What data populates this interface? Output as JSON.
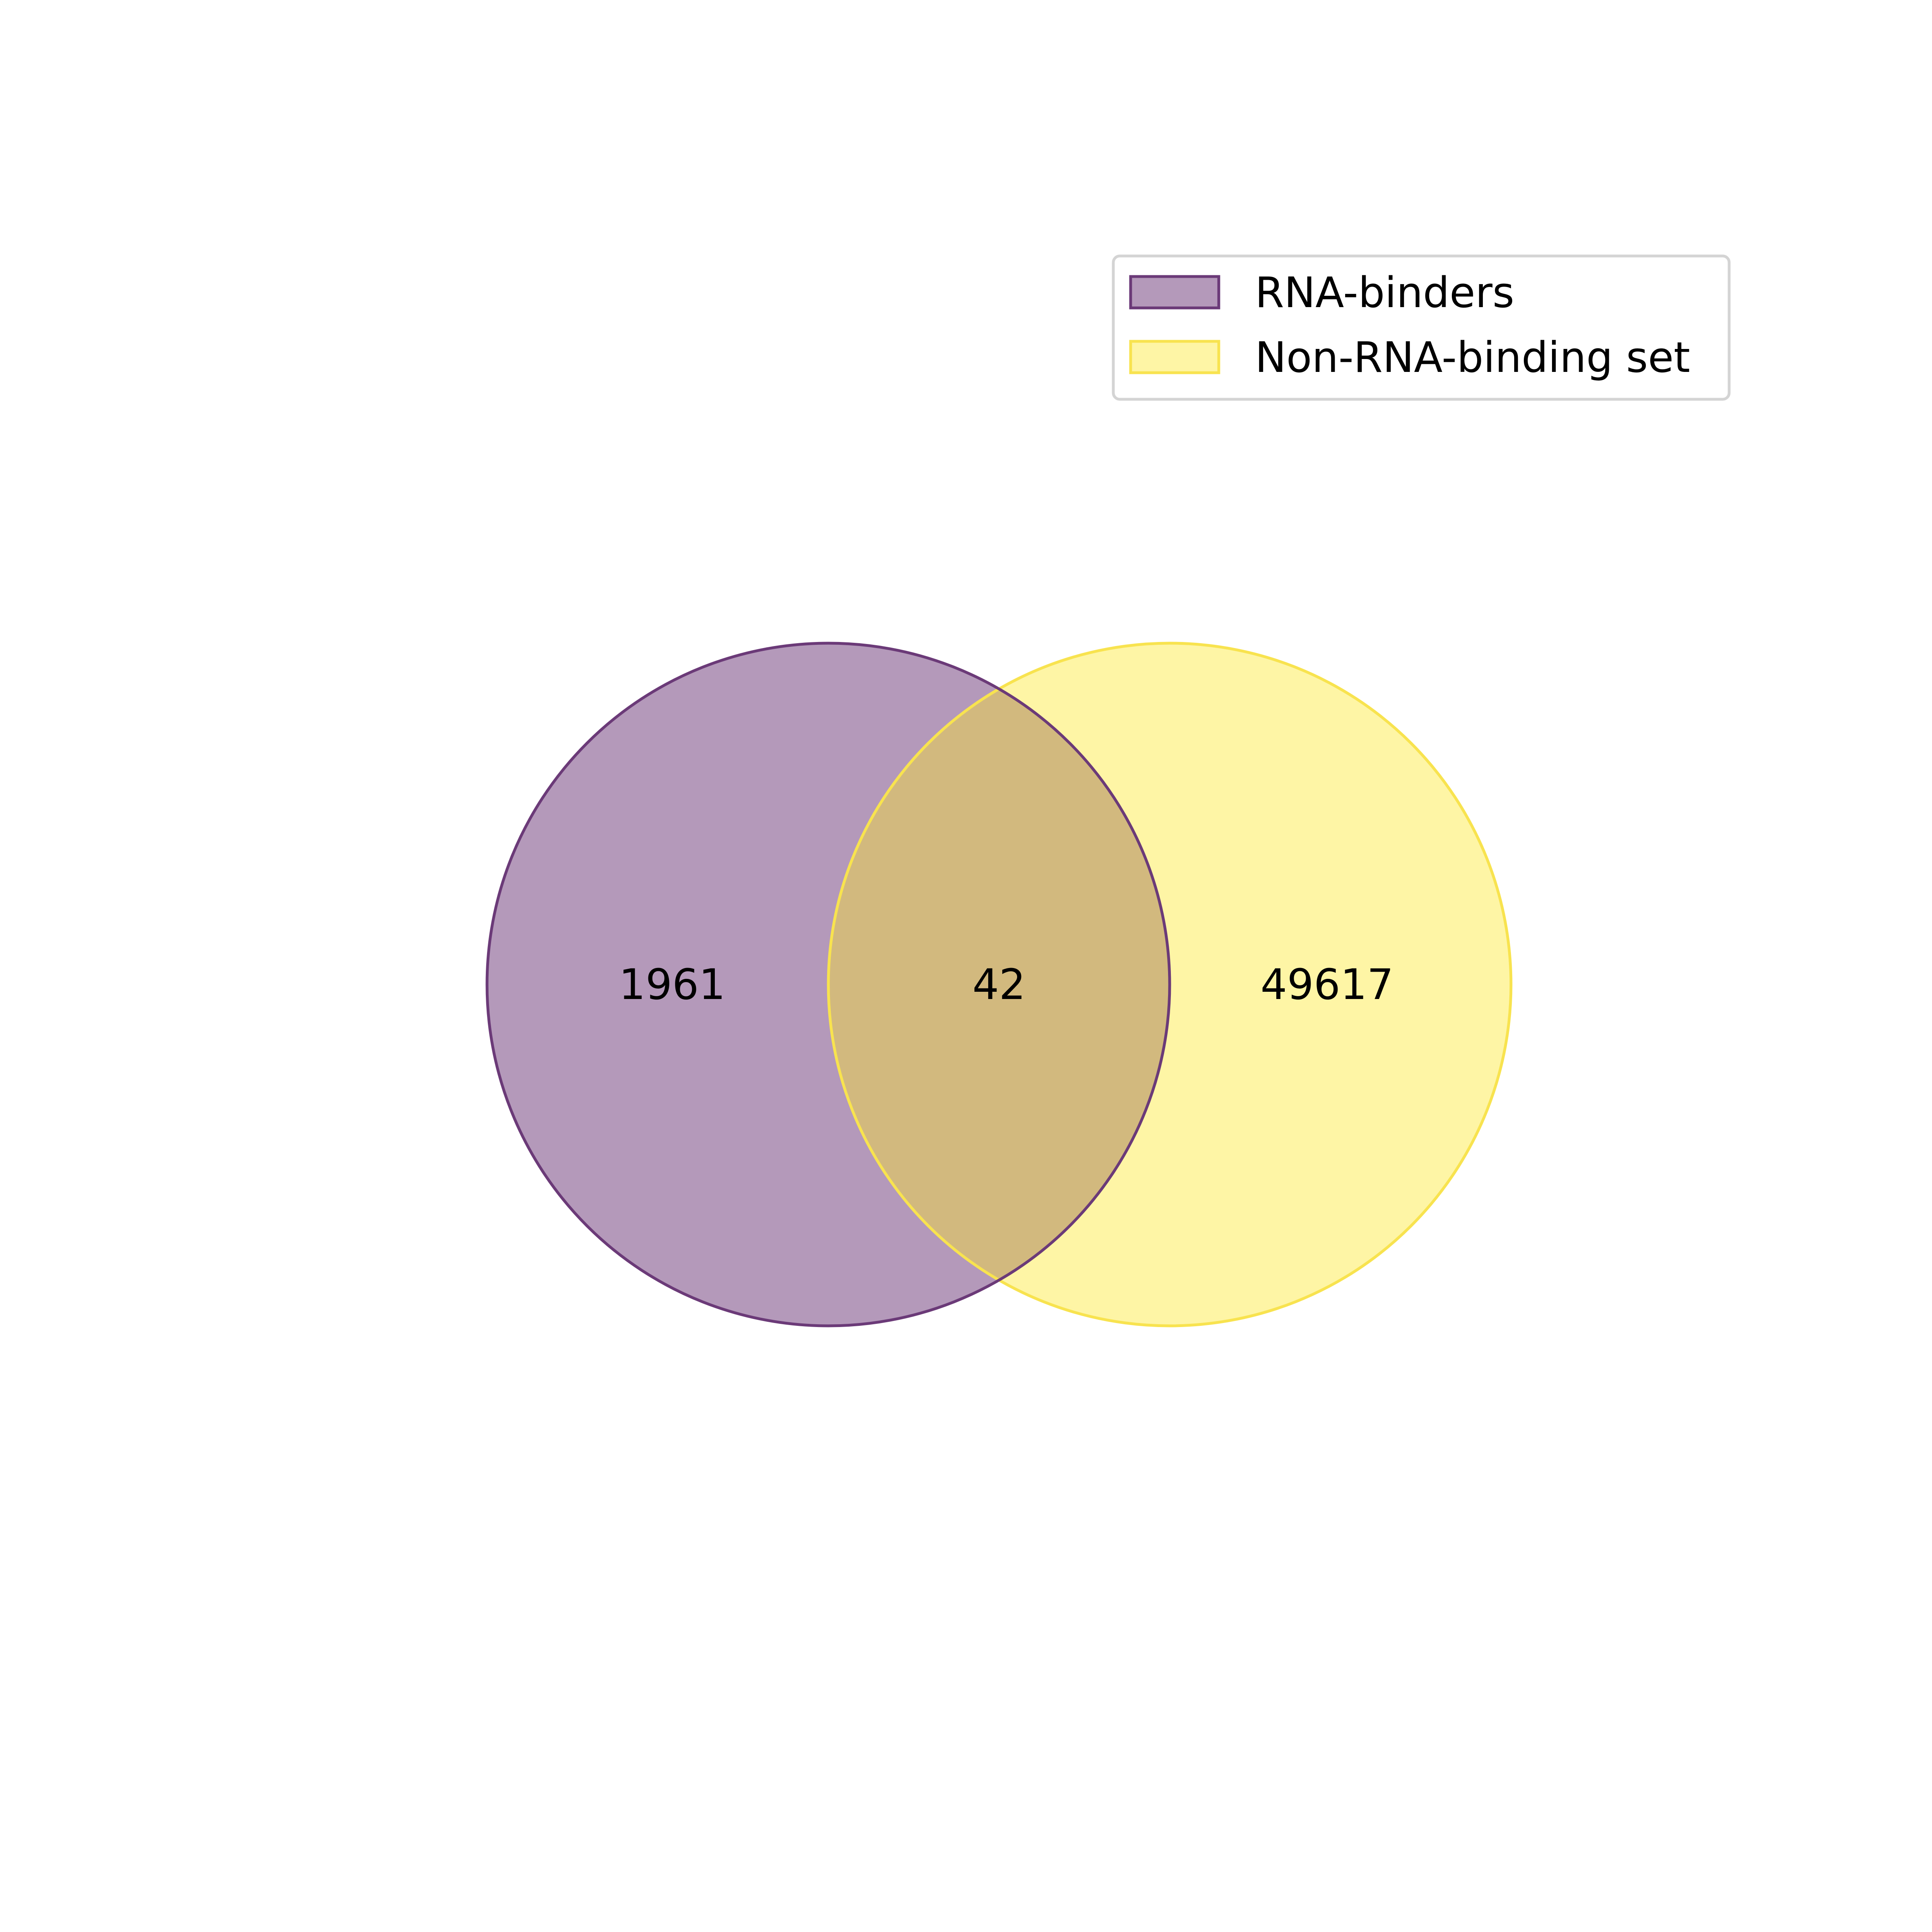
{
  "sets": [
    {
      "name": "RNA-binders",
      "only_count": "1961",
      "fill_color": "#b499ba",
      "edge_color": "#6b3a78"
    },
    {
      "name": "Non-RNA-binding set",
      "only_count": "49617",
      "fill_color": "#fef5a5",
      "edge_color": "#f8e34f"
    }
  ],
  "intersection": {
    "count": "42",
    "fill_color": "#d2b97e"
  },
  "legend": {
    "placement": "top-right",
    "items": [
      {
        "label": "RNA-binders"
      },
      {
        "label": "Non-RNA-binding set"
      }
    ]
  }
}
